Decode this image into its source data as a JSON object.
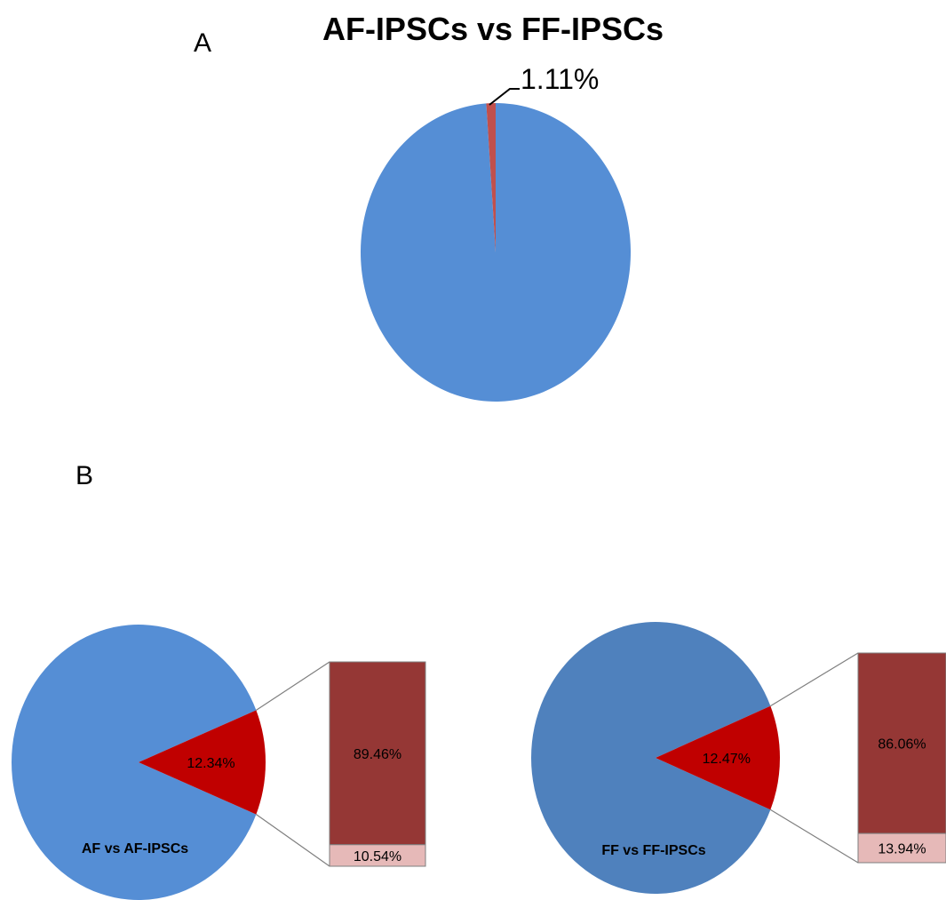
{
  "chart_data": [
    {
      "type": "pie",
      "panel_label": "A",
      "title": "AF-IPSCs vs FF-IPSCs",
      "slices": [
        {
          "value": 98.89,
          "color": "#558ed5",
          "label": ""
        },
        {
          "value": 1.11,
          "color": "#c0504d",
          "label": "1.11%"
        }
      ]
    },
    {
      "type": "pie",
      "panel_label": "B",
      "title": "",
      "pie_label": "AF vs AF-IPSCs",
      "slices": [
        {
          "value": 87.66,
          "color": "#558ed5",
          "label": ""
        },
        {
          "value": 12.34,
          "color": "#c00000",
          "label": "12.34%"
        }
      ],
      "breakout": {
        "segments": [
          {
            "value": 89.46,
            "color": "#953735",
            "label": "89.46%"
          },
          {
            "value": 10.54,
            "color": "#e6b9b8",
            "label": "10.54%"
          }
        ]
      }
    },
    {
      "type": "pie",
      "title": "",
      "pie_label": "FF vs FF-IPSCs",
      "slices": [
        {
          "value": 87.53,
          "color": "#4f81bd",
          "label": ""
        },
        {
          "value": 12.47,
          "color": "#c00000",
          "label": "12.47%"
        }
      ],
      "breakout": {
        "segments": [
          {
            "value": 86.06,
            "color": "#953735",
            "label": "86.06%"
          },
          {
            "value": 13.94,
            "color": "#e6b9b8",
            "label": "13.94%"
          }
        ]
      }
    }
  ]
}
